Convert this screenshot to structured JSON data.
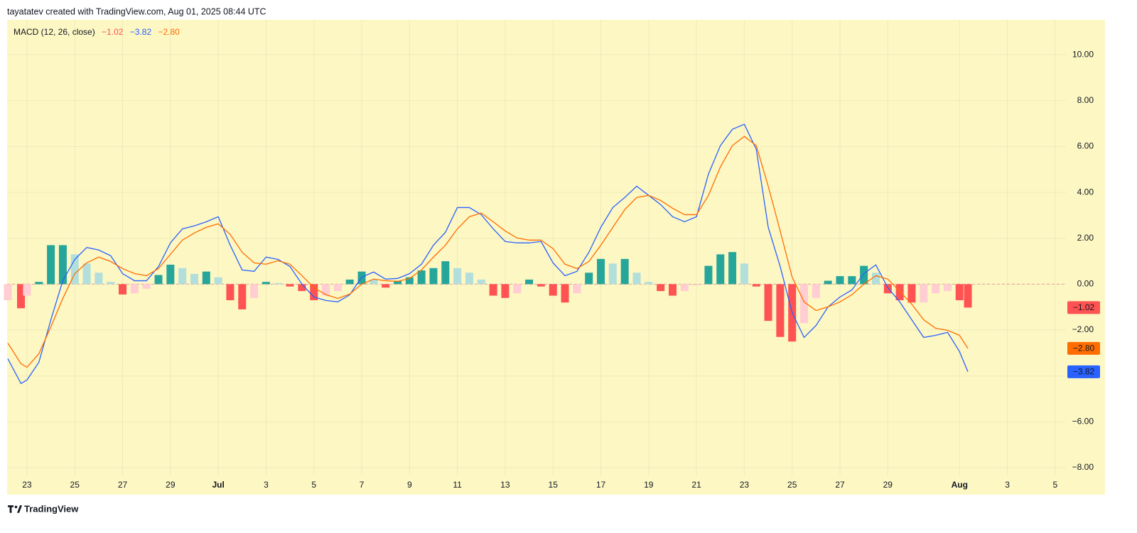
{
  "header": "tayatatev created with TradingView.com, Aug 01, 2025 08:44 UTC",
  "footer": "TradingView",
  "chart_data": {
    "type": "macd",
    "title": "MACD (12, 26, close)",
    "x": [
      22.2,
      22.75,
      23,
      23.5,
      24,
      24.5,
      25,
      25.5,
      26,
      26.5,
      27,
      27.5,
      28,
      28.5,
      29,
      29.5,
      30,
      30.5,
      31,
      31.5,
      32,
      32.5,
      33,
      33.5,
      34,
      34.5,
      35,
      35.5,
      36,
      36.5,
      37,
      37.5,
      38,
      38.5,
      39,
      39.5,
      40,
      40.5,
      41,
      41.5,
      42,
      42.5,
      43,
      43.5,
      44,
      44.5,
      45,
      45.5,
      46,
      46.5,
      47,
      47.5,
      48,
      48.5,
      49,
      49.5,
      50,
      50.5,
      51,
      51.5,
      52,
      52.5,
      53,
      53.5,
      54,
      54.5,
      55,
      55.5,
      56,
      56.5,
      57,
      57.5,
      58,
      58.5,
      59,
      59.5,
      60,
      60.5,
      61,
      61.5,
      62,
      62.35
    ],
    "series": [
      {
        "type": "histogram",
        "colors": [
          "#26a69a",
          "#b2dfdb",
          "#ff5252",
          "#ffcdd2"
        ],
        "values": [
          -0.7,
          -1.05,
          -0.5,
          0.1,
          1.7,
          1.7,
          1.3,
          0.9,
          0.5,
          0.1,
          -0.45,
          -0.4,
          -0.2,
          0.4,
          0.85,
          0.7,
          0.45,
          0.55,
          0.3,
          -0.7,
          -1.1,
          -0.6,
          0.1,
          0.05,
          -0.1,
          -0.3,
          -0.7,
          -0.5,
          -0.3,
          0.2,
          0.55,
          0.2,
          -0.15,
          0.15,
          0.3,
          0.6,
          0.7,
          1.0,
          0.7,
          0.5,
          0.2,
          -0.5,
          -0.6,
          -0.4,
          0.2,
          -0.1,
          -0.5,
          -0.8,
          -0.4,
          0.5,
          1.1,
          0.9,
          1.1,
          0.5,
          0.1,
          -0.3,
          -0.5,
          -0.3,
          -0.05,
          0.8,
          1.3,
          1.4,
          0.9,
          -0.1,
          -1.6,
          -2.3,
          -2.5,
          -1.7,
          -0.6,
          0.15,
          0.35,
          0.35,
          0.8,
          0.5,
          -0.4,
          -0.7,
          -0.8,
          -0.8,
          -0.4,
          -0.3,
          -0.7,
          -1.02
        ],
        "value_labels": [
          null,
          null,
          null,
          null,
          null,
          null,
          null,
          null,
          null,
          null,
          null,
          null,
          null,
          null,
          null,
          null,
          null,
          null,
          null,
          null,
          null,
          null,
          null,
          null,
          null,
          null,
          null,
          null,
          null,
          null,
          null,
          null,
          null,
          null,
          null,
          null,
          null,
          null,
          null,
          null,
          null,
          null,
          null,
          null,
          null,
          null,
          null,
          null,
          null,
          null,
          null,
          null,
          null,
          null,
          null,
          null,
          null,
          null,
          null,
          null,
          null,
          null,
          null,
          null,
          null,
          null,
          null,
          null,
          null,
          null,
          null,
          null,
          null,
          null,
          null,
          null,
          null,
          null,
          null,
          null,
          null,
          "−1.02"
        ]
      },
      {
        "type": "line",
        "color": "#2962ff",
        "values": [
          -3.25,
          -4.33,
          -4.18,
          -3.4,
          -1.55,
          0.15,
          1.08,
          1.6,
          1.49,
          1.24,
          0.46,
          0.15,
          0.15,
          0.77,
          1.8,
          2.41,
          2.54,
          2.72,
          2.94,
          1.7,
          0.62,
          0.56,
          1.18,
          1.08,
          0.77,
          0,
          -0.56,
          -0.71,
          -0.77,
          -0.46,
          0.31,
          0.53,
          0.22,
          0.25,
          0.46,
          0.87,
          1.7,
          2.26,
          3.34,
          3.34,
          3.03,
          2.41,
          1.86,
          1.8,
          1.8,
          1.86,
          0.93,
          0.37,
          0.56,
          1.39,
          2.48,
          3.34,
          3.78,
          4.27,
          3.87,
          3.47,
          2.94,
          2.72,
          2.94,
          4.8,
          6.04,
          6.75,
          6.97,
          5.88,
          2.48,
          0.77,
          -1.24,
          -2.32,
          -1.8,
          -0.99,
          -0.56,
          -0.25,
          0.46,
          0.84,
          -0.15,
          -0.77,
          -1.55,
          -2.32,
          -2.23,
          -2.1,
          -2.94,
          -3.82
        ],
        "value_labels": [
          null,
          null,
          null,
          null,
          null,
          null,
          null,
          null,
          null,
          null,
          null,
          null,
          null,
          null,
          null,
          null,
          null,
          null,
          null,
          null,
          null,
          null,
          null,
          null,
          null,
          null,
          null,
          null,
          null,
          null,
          null,
          null,
          null,
          null,
          null,
          null,
          null,
          null,
          null,
          null,
          null,
          null,
          null,
          null,
          null,
          null,
          null,
          null,
          null,
          null,
          null,
          null,
          null,
          null,
          null,
          null,
          null,
          null,
          null,
          null,
          null,
          null,
          null,
          null,
          null,
          null,
          null,
          null,
          null,
          null,
          null,
          null,
          null,
          null,
          null,
          null,
          null,
          null,
          null,
          null,
          null,
          "−3.82"
        ]
      },
      {
        "type": "line",
        "color": "#ff6d00",
        "values": [
          -2.57,
          -3.47,
          -3.62,
          -3.03,
          -1.86,
          -0.62,
          0.46,
          0.93,
          1.18,
          0.99,
          0.68,
          0.46,
          0.37,
          0.68,
          1.3,
          1.92,
          2.23,
          2.48,
          2.63,
          2.17,
          1.39,
          0.93,
          0.87,
          1.02,
          0.87,
          0.37,
          -0.15,
          -0.46,
          -0.62,
          -0.43,
          0,
          0.22,
          0.15,
          0.12,
          0.25,
          0.62,
          1.18,
          1.7,
          2.41,
          2.94,
          3.1,
          2.72,
          2.32,
          2.01,
          1.92,
          1.92,
          1.55,
          0.87,
          0.68,
          0.99,
          1.7,
          2.48,
          3.25,
          3.78,
          3.87,
          3.65,
          3.31,
          3.03,
          3.03,
          3.87,
          5.11,
          6.04,
          6.44,
          6.04,
          4.27,
          2.32,
          0.31,
          -0.77,
          -1.15,
          -0.99,
          -0.77,
          -0.46,
          0,
          0.37,
          0.22,
          -0.31,
          -0.87,
          -1.55,
          -1.92,
          -2.01,
          -2.23,
          -2.8
        ],
        "value_labels": [
          null,
          null,
          null,
          null,
          null,
          null,
          null,
          null,
          null,
          null,
          null,
          null,
          null,
          null,
          null,
          null,
          null,
          null,
          null,
          null,
          null,
          null,
          null,
          null,
          null,
          null,
          null,
          null,
          null,
          null,
          null,
          null,
          null,
          null,
          null,
          null,
          null,
          null,
          null,
          null,
          null,
          null,
          null,
          null,
          null,
          null,
          null,
          null,
          null,
          null,
          null,
          null,
          null,
          null,
          null,
          null,
          null,
          null,
          null,
          null,
          null,
          null,
          null,
          null,
          null,
          null,
          null,
          null,
          null,
          null,
          null,
          null,
          null,
          null,
          null,
          null,
          null,
          null,
          null,
          null,
          null,
          "−2.80"
        ]
      }
    ],
    "xlim": [
      22.17,
      66.45
    ],
    "ylim": [
      -8.34,
      11.52
    ],
    "xticks": [
      23,
      25,
      27,
      29,
      {
        "value": 31,
        "label": "Jul"
      },
      {
        "value": 33,
        "label": "3"
      },
      {
        "value": 35,
        "label": "5"
      },
      {
        "value": 37,
        "label": "7"
      },
      {
        "value": 39,
        "label": "9"
      },
      {
        "value": 41,
        "label": "11"
      },
      {
        "value": 43,
        "label": "13"
      },
      {
        "value": 45,
        "label": "15"
      },
      {
        "value": 47,
        "label": "17"
      },
      {
        "value": 49,
        "label": "19"
      },
      {
        "value": 51,
        "label": "21"
      },
      {
        "value": 53,
        "label": "23"
      },
      {
        "value": 55,
        "label": "25"
      },
      {
        "value": 57,
        "label": "27"
      },
      {
        "value": 59,
        "label": "29"
      },
      {
        "value": 62,
        "label": "Aug"
      },
      {
        "value": 64,
        "label": "3"
      },
      {
        "value": 66,
        "label": "5"
      }
    ],
    "yticks": [
      {
        "value": 10,
        "label": "10.00"
      },
      {
        "value": 8,
        "label": "8.00"
      },
      {
        "value": 6,
        "label": "6.00"
      },
      {
        "value": 4,
        "label": "4.00"
      },
      {
        "value": 2,
        "label": "2.00"
      },
      {
        "value": 0,
        "label": "0.00"
      },
      {
        "value": -2,
        "label": "−2.00"
      },
      {
        "value": -4,
        "label": "−4.00"
      },
      {
        "value": -6,
        "label": "−6.00"
      },
      {
        "value": -8,
        "label": "−8.00"
      }
    ],
    "grid": true,
    "zero_line": true
  }
}
